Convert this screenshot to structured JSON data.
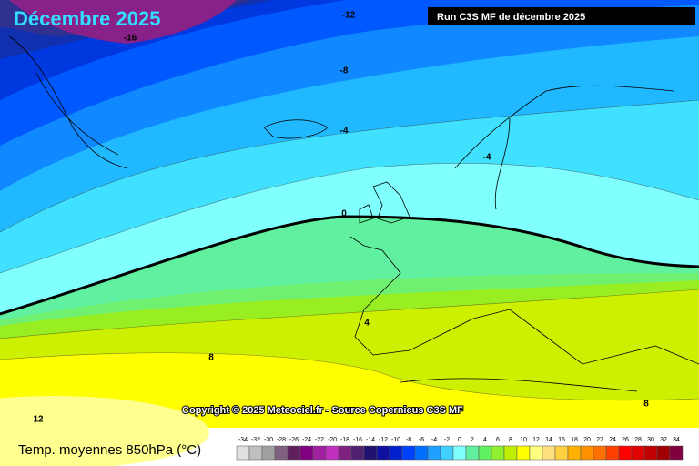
{
  "title": "Décembre 2025",
  "run_label": "Run C3S MF de décembre 2025",
  "contour_labels": [
    -16,
    -12,
    -8,
    -4,
    -4,
    0,
    4,
    8,
    12,
    8
  ],
  "copyright": "Copyright © 2025 Meteociel.fr - Source Copernicus C3S MF",
  "legend": {
    "title": "Temp. moyennes 850hPa (°C)",
    "ticks": [
      -34,
      -32,
      -30,
      -28,
      -26,
      -24,
      -22,
      -20,
      -18,
      -16,
      -14,
      -12,
      -10,
      -8,
      -6,
      -4,
      -2,
      0,
      2,
      4,
      6,
      8,
      10,
      12,
      14,
      16,
      18,
      20,
      22,
      24,
      26,
      28,
      30,
      32,
      34
    ],
    "colors": [
      "#e0e0e0",
      "#c0c0c0",
      "#a0a0a0",
      "#806080",
      "#602060",
      "#800080",
      "#a020a0",
      "#c030c0",
      "#802080",
      "#502070",
      "#201070",
      "#1010a0",
      "#0020d0",
      "#0040ff",
      "#0070ff",
      "#20a0ff",
      "#40d0ff",
      "#80ffff",
      "#60f0a0",
      "#60f060",
      "#90f030",
      "#c0f000",
      "#ffff00",
      "#ffff80",
      "#ffe080",
      "#ffd040",
      "#ffb000",
      "#ff9000",
      "#ff7000",
      "#ff4000",
      "#ff0000",
      "#e00000",
      "#c00000",
      "#a00000",
      "#800040"
    ]
  }
}
